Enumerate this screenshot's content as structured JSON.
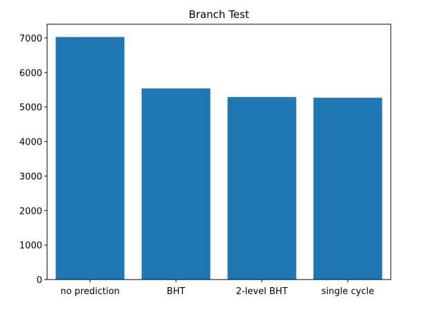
{
  "chart_data": {
    "type": "bar",
    "title": "Branch Test",
    "xlabel": "",
    "ylabel": "",
    "categories": [
      "no prediction",
      "BHT",
      "2-level BHT",
      "single cycle"
    ],
    "values": [
      7030,
      5540,
      5290,
      5270
    ],
    "ylim": [
      0,
      7400
    ],
    "yticks": [
      0,
      1000,
      2000,
      3000,
      4000,
      5000,
      6000,
      7000
    ],
    "bar_color": "#1f77b4",
    "grid": false,
    "legend": "none"
  }
}
